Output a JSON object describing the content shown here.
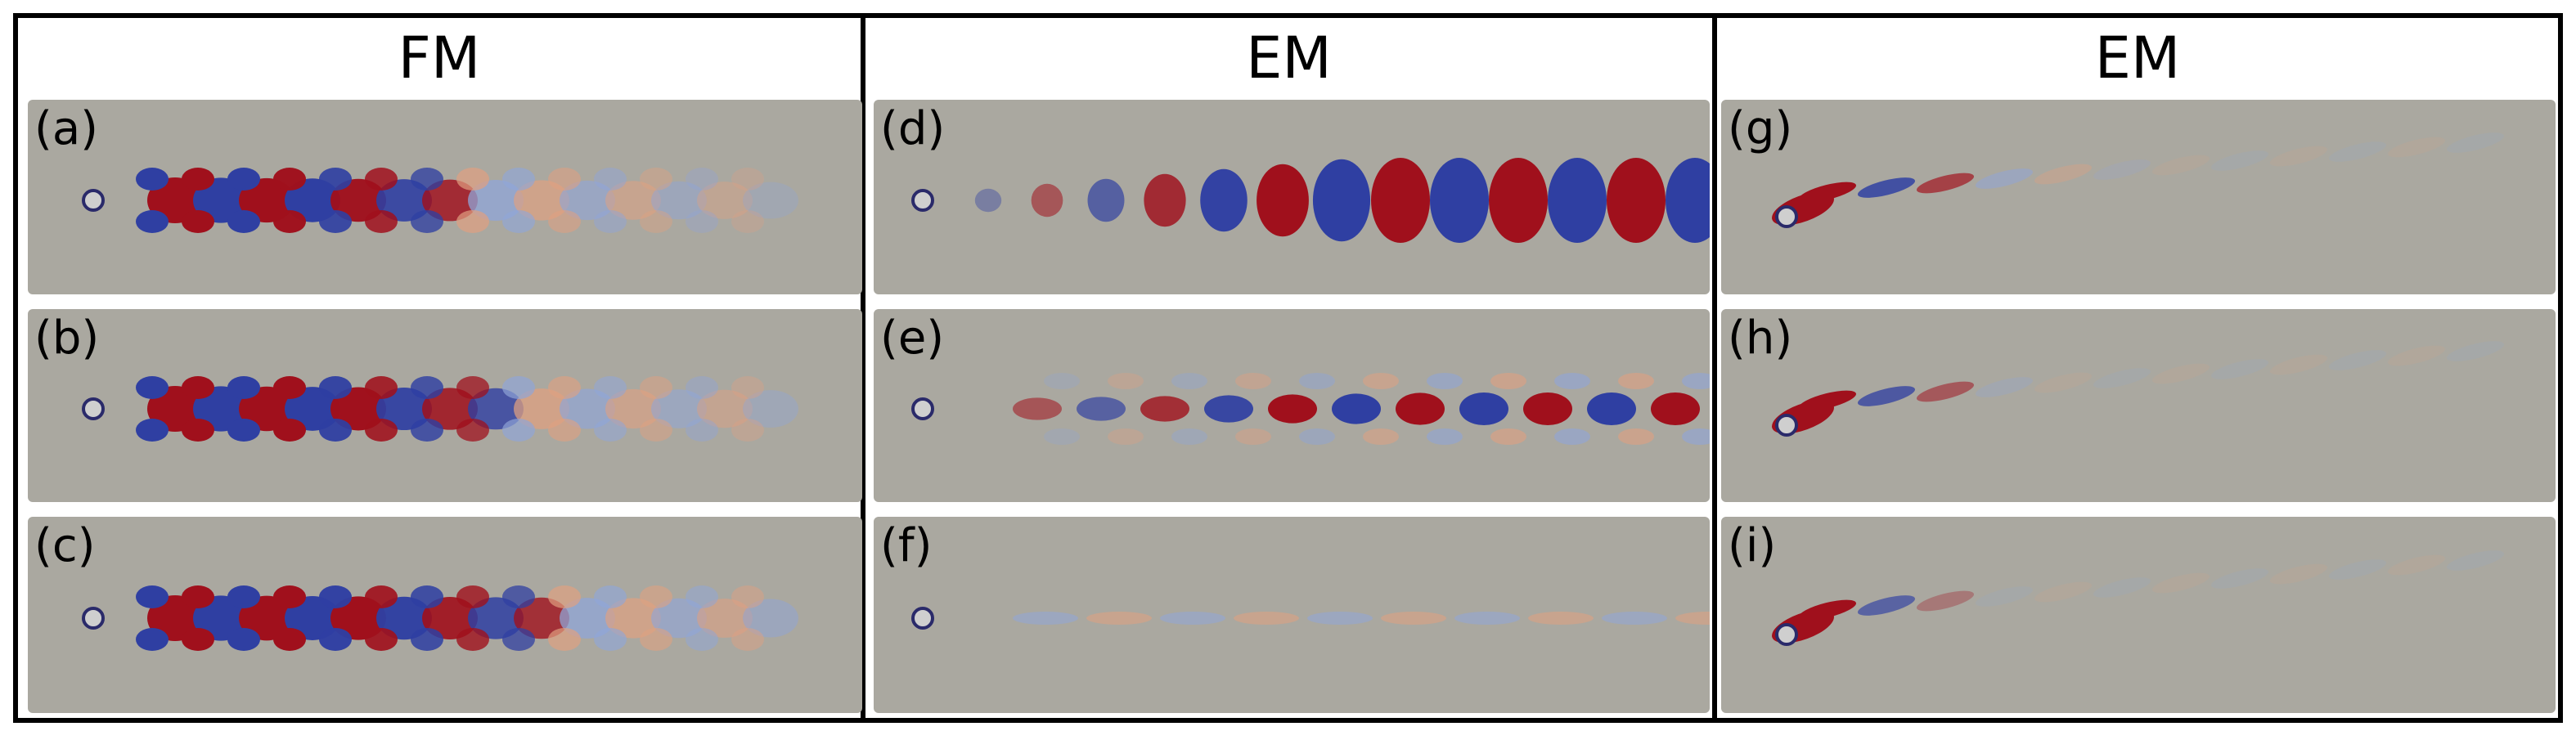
{
  "columns": [
    {
      "title": "FM",
      "panels": [
        "a",
        "b",
        "c"
      ]
    },
    {
      "title": "EM",
      "panels": [
        "d",
        "e",
        "f"
      ]
    },
    {
      "title": "EM",
      "panels": [
        "g",
        "h",
        "i"
      ]
    }
  ],
  "panel_labels": {
    "a": "(a)",
    "b": "(b)",
    "c": "(c)",
    "d": "(d)",
    "e": "(e)",
    "f": "(f)",
    "g": "(g)",
    "h": "(h)",
    "i": "(i)"
  },
  "colors": {
    "background": "#aaa8a0",
    "positive": "#a0101c",
    "negative": "#2f3fa2",
    "positive_light": "#e0a080",
    "negative_light": "#8fa5d8",
    "frame": "#000000"
  }
}
